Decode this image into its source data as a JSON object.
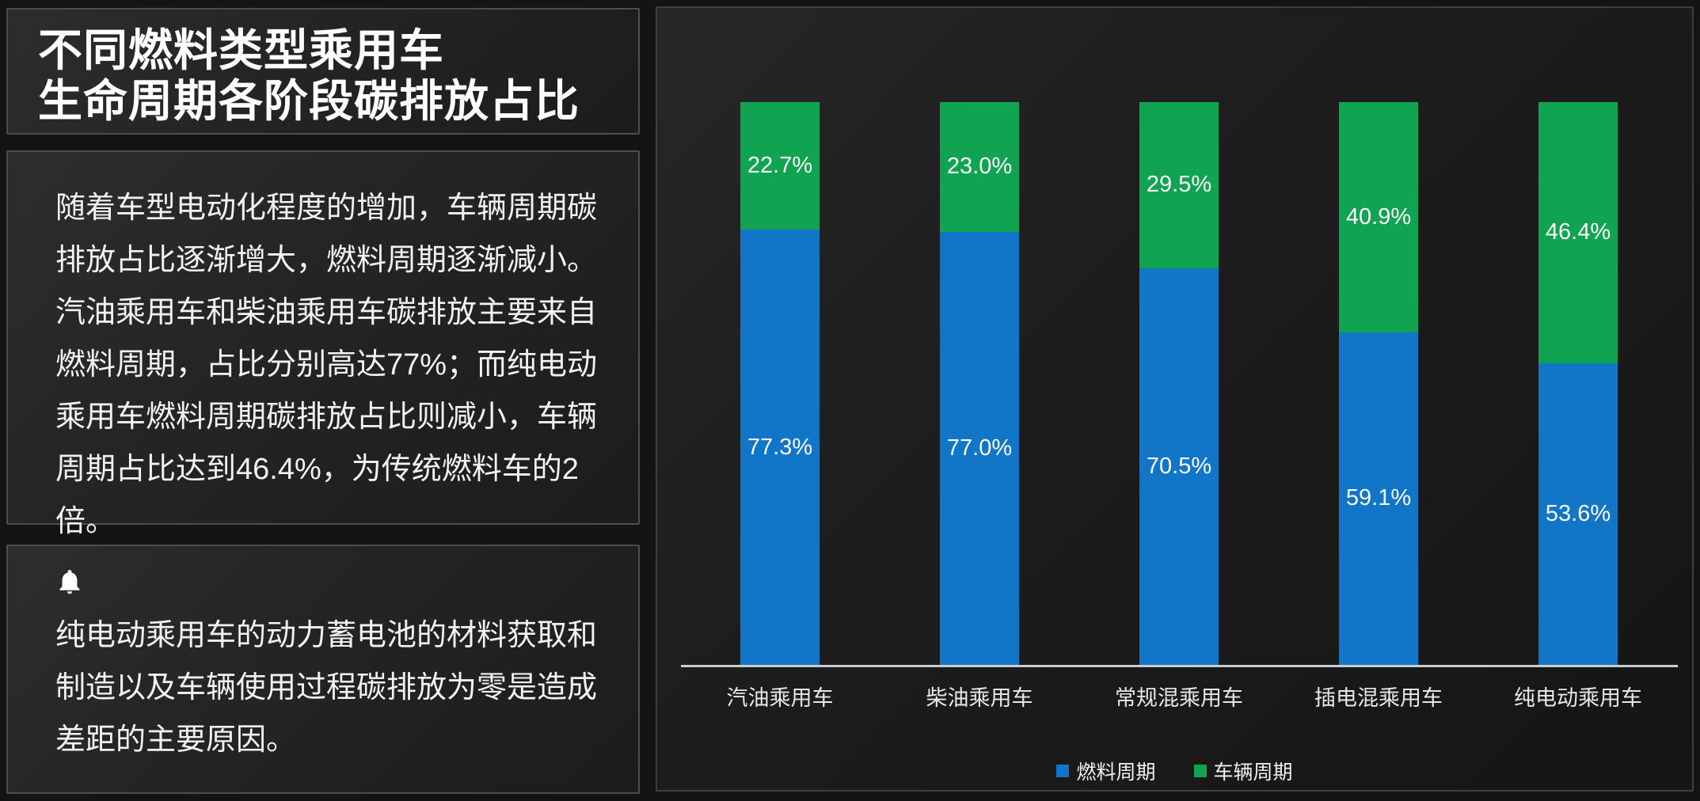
{
  "left_panel": {
    "title_line1": "不同燃料类型乘用车",
    "title_line2": "生命周期各阶段碳排放占比",
    "description": "随着车型电动化程度的增加，车辆周期碳排放占比逐渐增大，燃料周期逐渐减小。汽油乘用车和柴油乘用车碳排放主要来自燃料周期，占比分别高达77%；而纯电动乘用车燃料周期碳排放占比则减小，车辆周期占比达到46.4%，为传统燃料车的2倍。",
    "note_icon": "bell-icon",
    "note": "纯电动乘用车的动力蓄电池的材料获取和制造以及车辆使用过程碳排放为零是造成差距的主要原因。"
  },
  "chart_data": {
    "type": "bar",
    "stacked": true,
    "percent_stacked": true,
    "title": "",
    "xlabel": "",
    "ylabel": "",
    "ylim": [
      0,
      100
    ],
    "grid": false,
    "legend_position": "bottom",
    "categories": [
      "汽油乘用车",
      "柴油乘用车",
      "常规混乘用车",
      "插电混乘用车",
      "纯电动乘用车"
    ],
    "series": [
      {
        "name": "燃料周期",
        "color": "#1176c8",
        "values": [
          77.3,
          77.0,
          70.5,
          59.1,
          53.6
        ],
        "labels": [
          "77.3%",
          "77.0%",
          "70.5%",
          "59.1%",
          "53.6%"
        ]
      },
      {
        "name": "车辆周期",
        "color": "#10a452",
        "values": [
          22.7,
          23.0,
          29.5,
          40.9,
          46.4
        ],
        "labels": [
          "22.7%",
          "23.0%",
          "29.5%",
          "40.9%",
          "46.4%"
        ]
      }
    ]
  },
  "colors": {
    "background": "#141414",
    "panel_border": "#4d4d4d",
    "axis_line": "#c9ccce",
    "text": "#ffffff"
  }
}
